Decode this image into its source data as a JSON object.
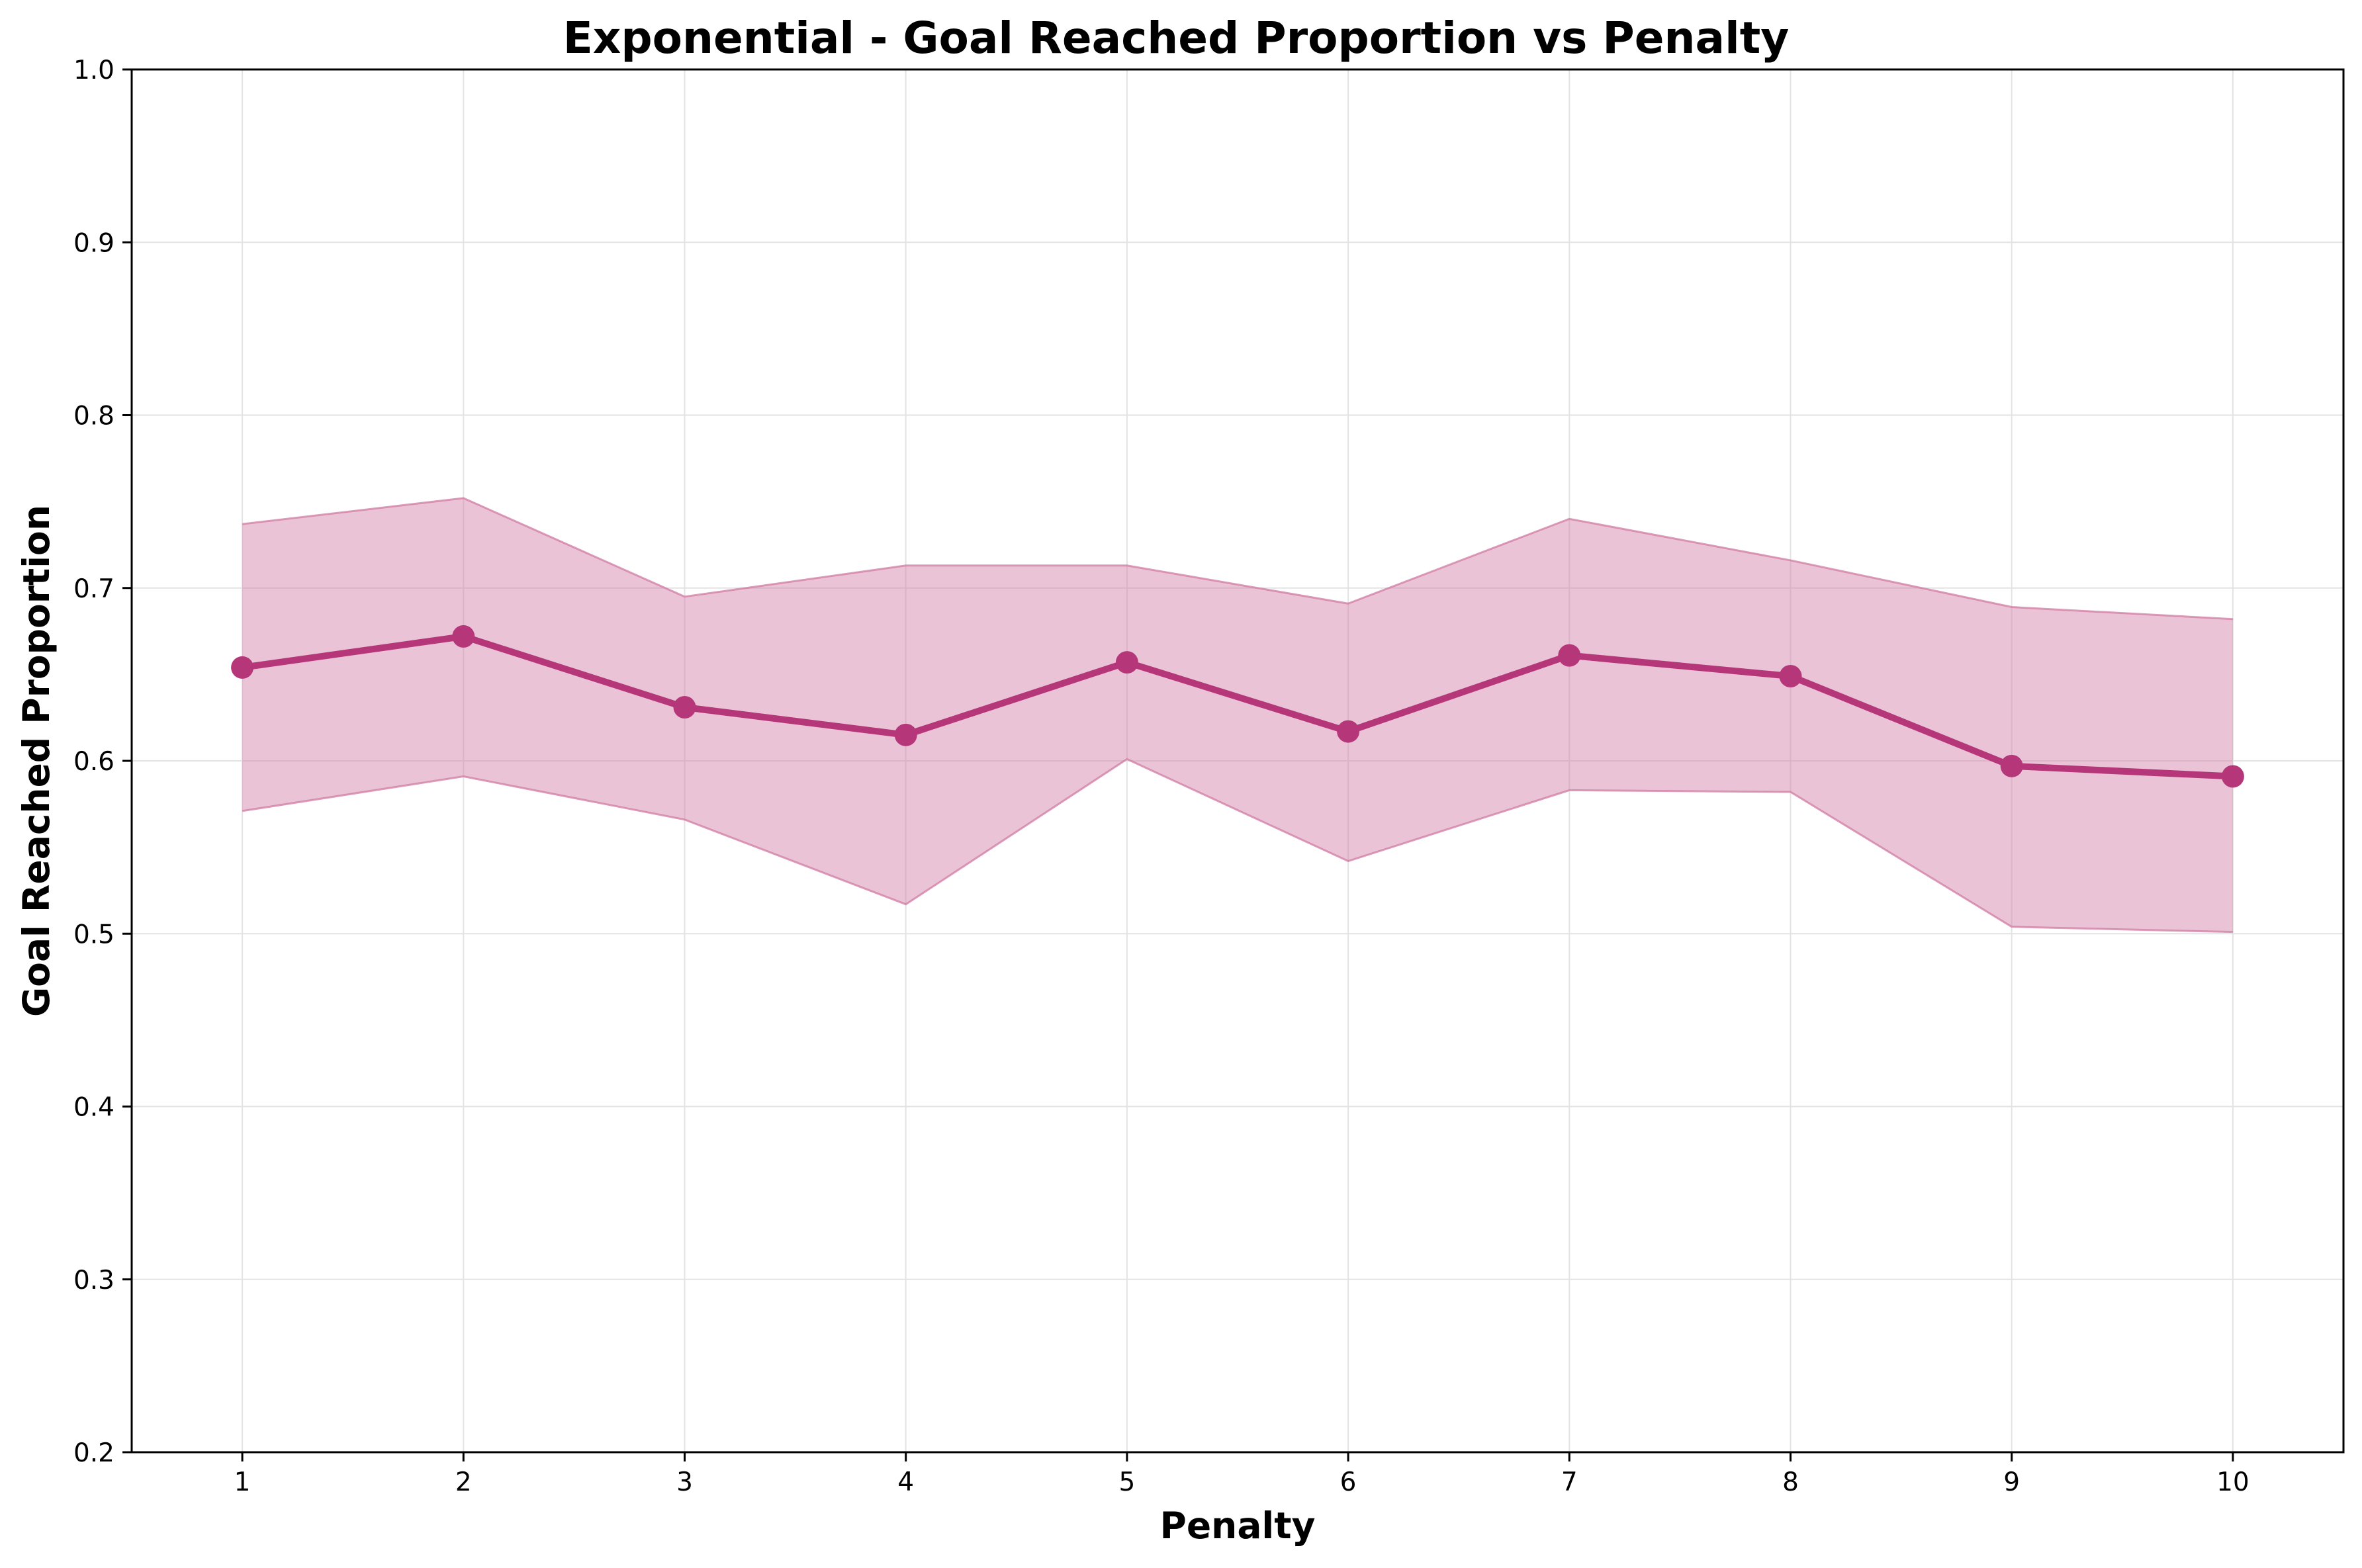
{
  "chart_data": {
    "type": "line",
    "title": "Exponential - Goal Reached Proportion vs Penalty",
    "xlabel": "Penalty",
    "ylabel": "Goal Reached Proportion",
    "x": [
      1,
      2,
      3,
      4,
      5,
      6,
      7,
      8,
      9,
      10
    ],
    "series": [
      {
        "values": [
          0.654,
          0.672,
          0.631,
          0.615,
          0.657,
          0.617,
          0.661,
          0.649,
          0.597,
          0.591
        ],
        "lower": [
          0.571,
          0.591,
          0.566,
          0.517,
          0.601,
          0.542,
          0.583,
          0.582,
          0.504,
          0.501
        ],
        "upper": [
          0.737,
          0.752,
          0.695,
          0.713,
          0.713,
          0.691,
          0.74,
          0.716,
          0.689,
          0.682
        ],
        "color": "#b5377a",
        "band_color": "#d07ba3"
      }
    ],
    "xlim": [
      0.5,
      10.5
    ],
    "ylim": [
      0.2,
      1.0
    ],
    "xticks": [
      "1",
      "2",
      "3",
      "4",
      "5",
      "6",
      "7",
      "8",
      "9",
      "10"
    ],
    "yticks": [
      "0.2",
      "0.3",
      "0.4",
      "0.5",
      "0.6",
      "0.7",
      "0.8",
      "0.9",
      "1.0"
    ],
    "grid": true,
    "legend": "none"
  }
}
